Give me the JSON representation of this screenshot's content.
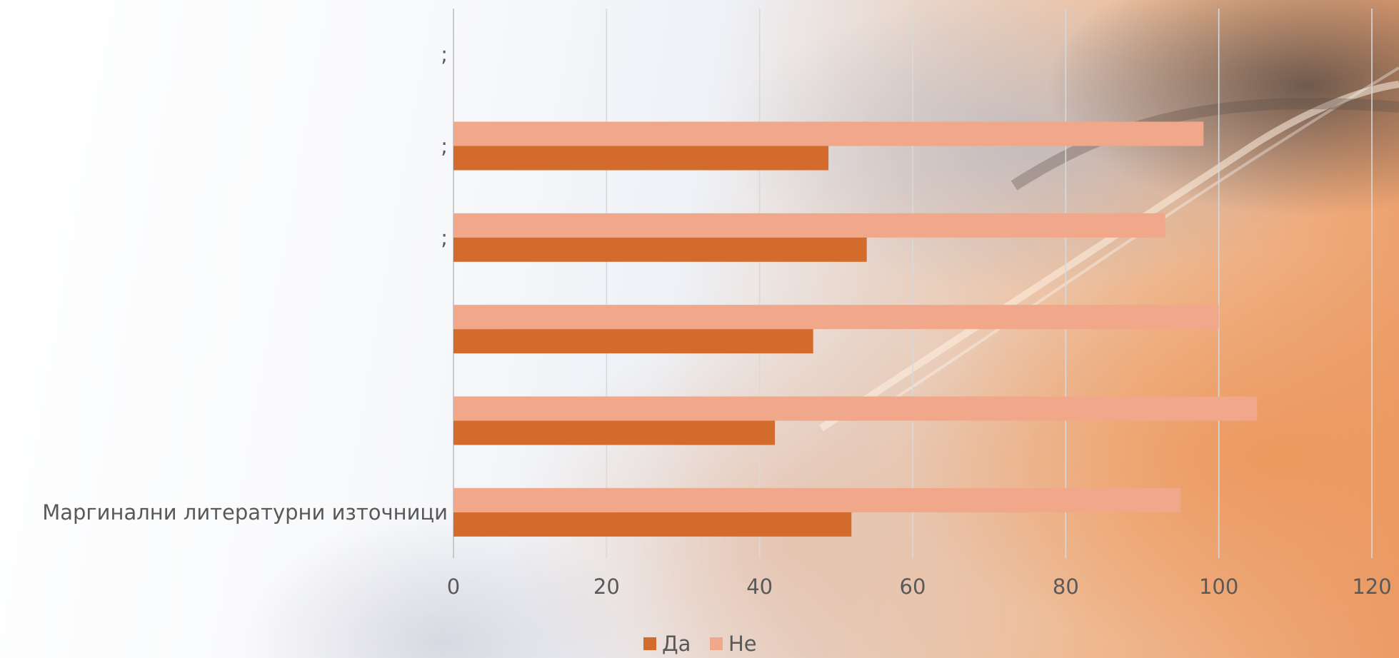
{
  "chart_data": {
    "type": "bar",
    "orientation": "horizontal",
    "categories": [
      "Маргинални литературни източници",
      "",
      "",
      ";",
      ";",
      ";"
    ],
    "series": [
      {
        "name": "Да",
        "color": "#D26B2C",
        "values": [
          52,
          42,
          47,
          54,
          49,
          null
        ]
      },
      {
        "name": "Не",
        "color": "#F1A78A",
        "values": [
          95,
          105,
          100,
          93,
          98,
          null
        ]
      }
    ],
    "x_ticks": [
      "0",
      "20",
      "40",
      "60",
      "80",
      "100",
      "120"
    ],
    "xlim": [
      0,
      120
    ],
    "grid": "vertical",
    "legend_position": "bottom"
  }
}
